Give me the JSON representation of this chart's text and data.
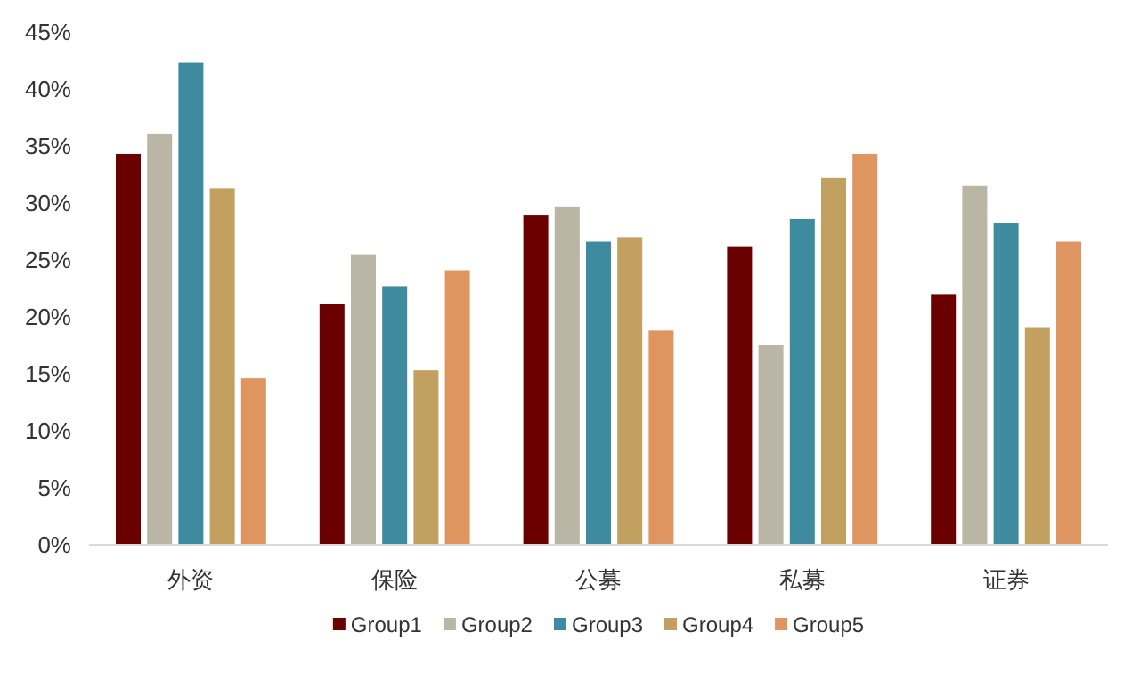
{
  "chart_data": {
    "type": "bar",
    "categories": [
      "外资",
      "保险",
      "公募",
      "私募",
      "证券"
    ],
    "series": [
      {
        "name": "Group1",
        "color": "#6b0000",
        "values": [
          34.3,
          21.1,
          28.9,
          26.2,
          22.0
        ]
      },
      {
        "name": "Group2",
        "color": "#bab6a5",
        "values": [
          36.1,
          25.5,
          29.7,
          17.5,
          31.5
        ]
      },
      {
        "name": "Group3",
        "color": "#3e8a9e",
        "values": [
          42.3,
          22.7,
          26.6,
          28.6,
          28.2
        ]
      },
      {
        "name": "Group4",
        "color": "#c1a060",
        "values": [
          31.3,
          15.3,
          27.0,
          32.2,
          19.1
        ]
      },
      {
        "name": "Group5",
        "color": "#df955f",
        "values": [
          14.6,
          24.1,
          18.8,
          34.3,
          26.6
        ]
      }
    ],
    "ylim": [
      0,
      45
    ],
    "yticks": [
      {
        "value": 0,
        "label": "0%"
      },
      {
        "value": 5,
        "label": "5%"
      },
      {
        "value": 10,
        "label": "10%"
      },
      {
        "value": 15,
        "label": "15%"
      },
      {
        "value": 20,
        "label": "20%"
      },
      {
        "value": 25,
        "label": "25%"
      },
      {
        "value": 30,
        "label": "30%"
      },
      {
        "value": 35,
        "label": "35%"
      },
      {
        "value": 40,
        "label": "40%"
      },
      {
        "value": 45,
        "label": "45%"
      }
    ],
    "legend": "bottom"
  }
}
